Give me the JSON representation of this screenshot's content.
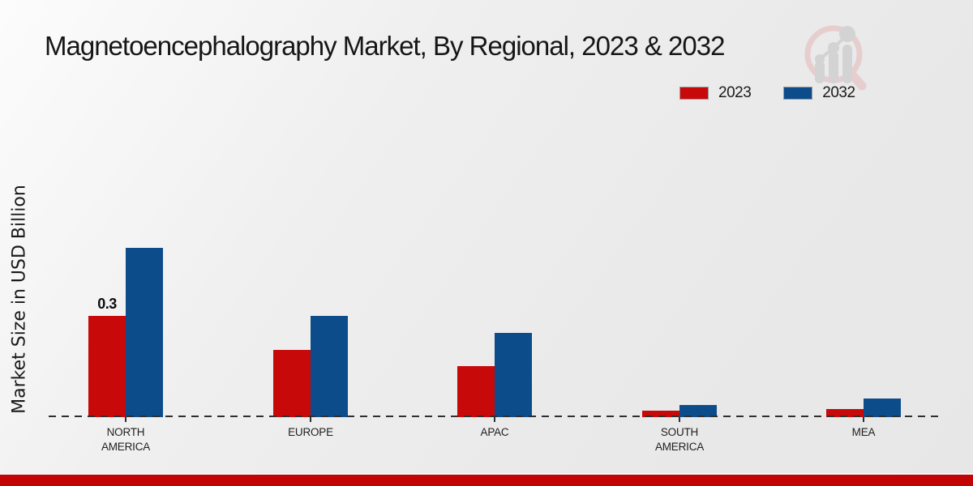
{
  "page": {
    "accent_bar_color": "#c20404",
    "background_color": "#ebebeb"
  },
  "icons": {
    "watermark": "magnifier-bar-chart-logo"
  },
  "chart_data": {
    "type": "bar",
    "title": "Magnetoencephalography Market, By Regional, 2023 & 2032",
    "xlabel": "",
    "ylabel": "Market Size in USD Billion",
    "categories": [
      "NORTH AMERICA",
      "EUROPE",
      "APAC",
      "SOUTH AMERICA",
      "MEA"
    ],
    "series": [
      {
        "name": "2023",
        "color": "#c80909",
        "values": [
          0.3,
          0.2,
          0.15,
          0.02,
          0.025
        ]
      },
      {
        "name": "2032",
        "color": "#0d4c8b",
        "values": [
          0.5,
          0.3,
          0.25,
          0.035,
          0.055
        ]
      }
    ],
    "data_labels": [
      {
        "series_index": 0,
        "category_index": 0,
        "text": "0.3"
      }
    ],
    "ylim": [
      0,
      0.55
    ],
    "y_axis_ticks_visible": false,
    "grid": false,
    "baseline_style": "dashed",
    "baseline_color": "#2f2f2f",
    "legend_position": "top-right",
    "unit": "USD Billion"
  }
}
